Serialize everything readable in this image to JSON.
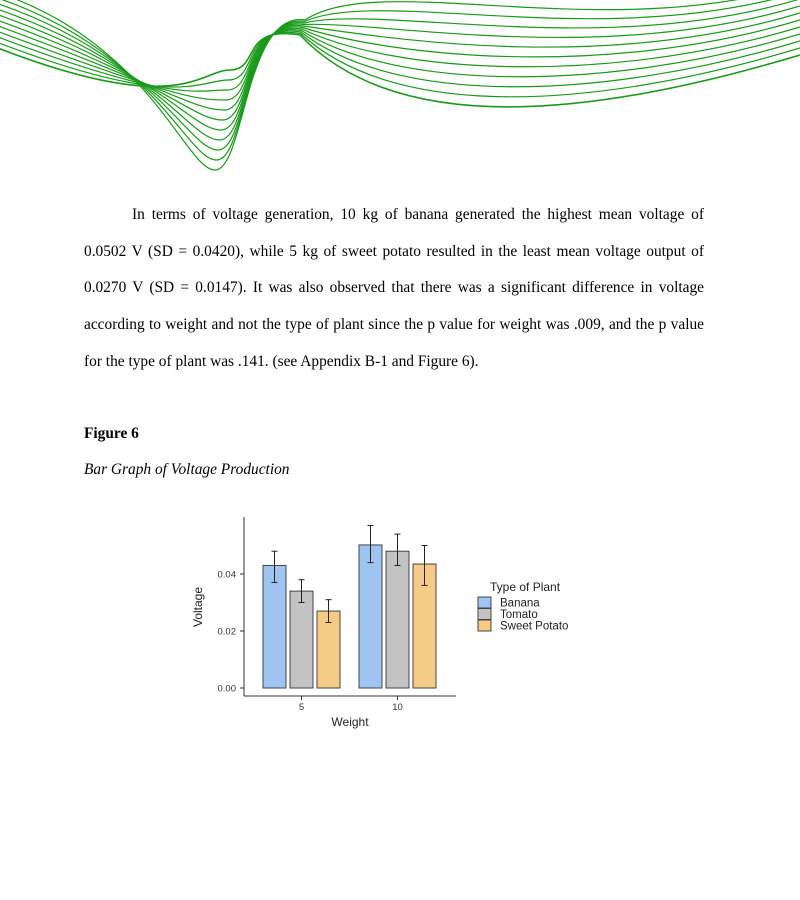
{
  "document": {
    "paragraph": "In terms of voltage generation, 10 kg of banana generated the highest mean voltage of 0.0502 V (SD = 0.0420), while 5 kg of sweet potato resulted in the least mean voltage output of 0.0270 V (SD = 0.0147). It was also observed that there was a significant difference in voltage according to weight and not the type of plant since the p value for weight was .009, and the p value for the type of plant was .141. (see Appendix B-1 and Figure 6).",
    "figure_number": "Figure 6",
    "figure_title": "Bar Graph of Voltage Production"
  },
  "colors": {
    "decor_line": "#1a9a1a",
    "banana": "#a0c4f2",
    "tomato": "#c3c3c3",
    "sweet_potato": "#f6cb86"
  },
  "chart_data": {
    "type": "bar",
    "xlabel": "Weight",
    "ylabel": "Voltage",
    "categories": [
      "5",
      "10"
    ],
    "ylim": [
      0,
      0.06
    ],
    "yticks": [
      "0.00",
      "0.02",
      "0.04"
    ],
    "legend_title": "Type of Plant",
    "legend_position": "right",
    "grid": false,
    "series": [
      {
        "name": "Banana",
        "color": "#a0c4f2",
        "values": [
          0.043,
          0.0502
        ],
        "err_low": [
          0.037,
          0.044
        ],
        "err_high": [
          0.048,
          0.057
        ]
      },
      {
        "name": "Tomato",
        "color": "#c3c3c3",
        "values": [
          0.034,
          0.048
        ],
        "err_low": [
          0.03,
          0.043
        ],
        "err_high": [
          0.038,
          0.054
        ]
      },
      {
        "name": "Sweet Potato",
        "color": "#f6cb86",
        "values": [
          0.027,
          0.0435
        ],
        "err_low": [
          0.023,
          0.036
        ],
        "err_high": [
          0.031,
          0.05
        ]
      }
    ]
  }
}
